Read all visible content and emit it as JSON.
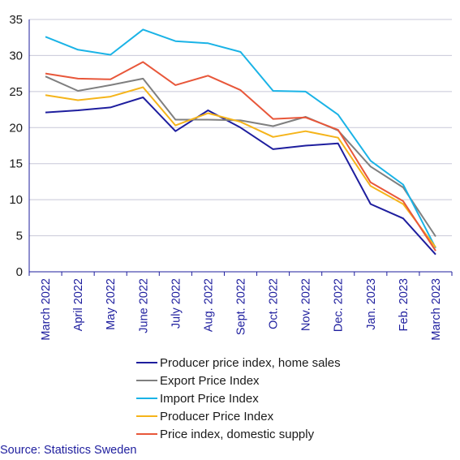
{
  "chart_data": {
    "type": "line",
    "categories": [
      "March 2022",
      "April 2022",
      "May 2022",
      "June 2022",
      "July 2022",
      "Aug. 2022",
      "Sept. 2022",
      "Oct. 2022",
      "Nov. 2022",
      "Dec. 2022",
      "Jan. 2023",
      "Feb. 2023",
      "March 2023"
    ],
    "ylim": [
      0,
      35
    ],
    "yticks": [
      0,
      5,
      10,
      15,
      20,
      25,
      30,
      35
    ],
    "grid": true,
    "legend_position": "bottom",
    "series": [
      {
        "name": "Producer price index, home sales",
        "color": "#1e1e9e",
        "values": [
          22.1,
          22.4,
          22.8,
          24.2,
          19.5,
          22.4,
          20.0,
          17.0,
          17.5,
          17.8,
          9.4,
          7.4,
          2.4
        ]
      },
      {
        "name": "Export Price Index",
        "color": "#7f7f7f",
        "values": [
          27.1,
          25.1,
          25.9,
          26.8,
          21.1,
          21.1,
          21.0,
          20.2,
          21.5,
          19.6,
          14.6,
          11.7,
          4.9
        ]
      },
      {
        "name": "Import Price Index",
        "color": "#1ab3e6",
        "values": [
          32.6,
          30.8,
          30.1,
          33.6,
          32.0,
          31.7,
          30.5,
          25.1,
          25.0,
          21.8,
          15.4,
          12.1,
          3.3
        ]
      },
      {
        "name": "Producer Price Index",
        "color": "#f5b41a",
        "values": [
          24.5,
          23.8,
          24.3,
          25.6,
          20.3,
          22.0,
          20.8,
          18.7,
          19.5,
          18.6,
          11.9,
          9.4,
          3.4
        ]
      },
      {
        "name": "Price index, domestic supply",
        "color": "#e8573a",
        "values": [
          27.5,
          26.8,
          26.7,
          29.1,
          25.9,
          27.2,
          25.2,
          21.2,
          21.4,
          19.7,
          12.4,
          9.8,
          2.9
        ]
      }
    ]
  },
  "source": "Source: Statistics Sweden"
}
